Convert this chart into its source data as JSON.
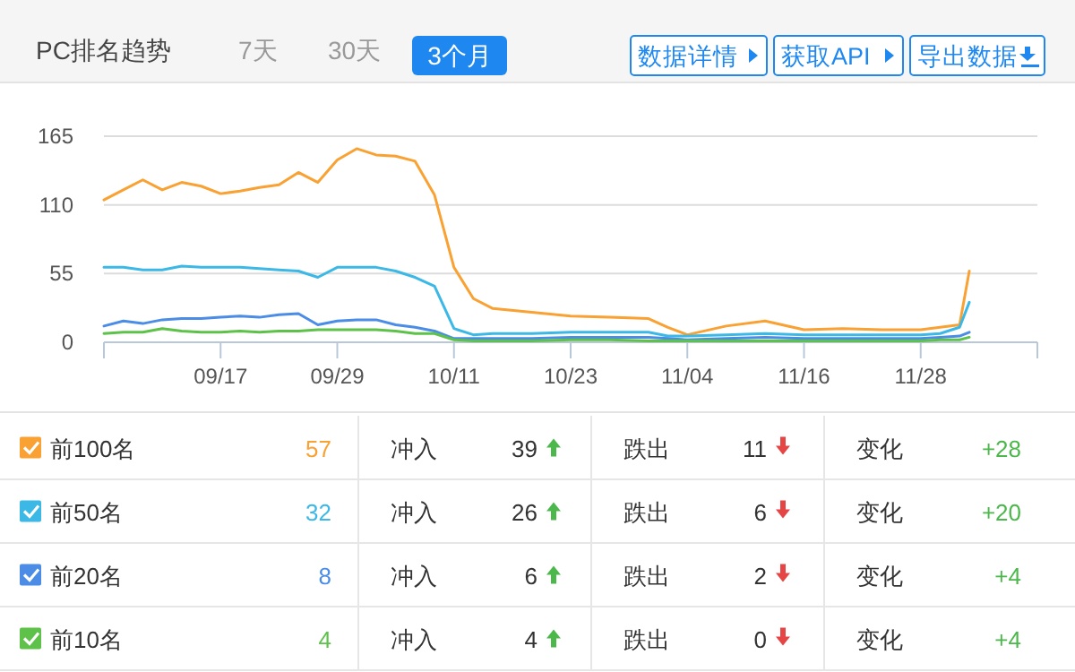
{
  "chart_data": [
    {
      "type": "line",
      "title": "PC排名趋势",
      "annotations": [
        "7天",
        "30天",
        "3个月",
        "数据详情",
        "获取API",
        "导出数据"
      ],
      "x": [
        "--09-05",
        "--09-07",
        "--09-09",
        "--09-11",
        "--09-13",
        "--09-15",
        "--09-17",
        "--09-19",
        "--09-21",
        "--09-23",
        "--09-25",
        "--09-27",
        "--09-29",
        "--10-01",
        "--10-03",
        "--10-05",
        "--10-07",
        "--10-09",
        "--10-11",
        "--10-13",
        "--10-15",
        "--10-19",
        "--10-23",
        "--10-27",
        "--10-31",
        "--11-02",
        "--11-04",
        "--11-08",
        "--11-12",
        "--11-16",
        "--11-20",
        "--11-24",
        "--11-28",
        "--11-30",
        "--12-02",
        "--12-03"
      ],
      "series": [
        {
          "color": "#f9a132",
          "values": [
            114,
            122,
            130,
            122,
            128,
            125,
            119,
            121,
            124,
            126,
            136,
            128,
            146,
            155,
            150,
            149,
            145,
            118,
            60,
            35,
            27,
            24,
            21,
            20,
            19,
            12,
            6,
            13,
            17,
            10,
            11,
            10,
            10,
            12,
            14,
            57
          ]
        },
        {
          "color": "#3cb8e6",
          "values": [
            60,
            60,
            58,
            58,
            61,
            60,
            60,
            60,
            59,
            58,
            57,
            52,
            60,
            60,
            60,
            57,
            52,
            45,
            11,
            6,
            7,
            7,
            8,
            8,
            8,
            5,
            5,
            6,
            7,
            6,
            6,
            6,
            6,
            7,
            12,
            32
          ]
        },
        {
          "color": "#4a8ce6",
          "values": [
            13,
            17,
            15,
            18,
            19,
            19,
            20,
            21,
            20,
            22,
            23,
            14,
            17,
            18,
            18,
            14,
            12,
            9,
            3,
            3,
            3,
            3,
            4,
            4,
            4,
            3,
            2,
            3,
            4,
            3,
            3,
            3,
            3,
            4,
            5,
            8
          ]
        },
        {
          "color": "#5ec24a",
          "values": [
            7,
            8,
            8,
            11,
            9,
            8,
            8,
            9,
            8,
            9,
            9,
            10,
            10,
            10,
            10,
            9,
            7,
            7,
            2,
            1,
            1,
            1,
            2,
            2,
            1,
            1,
            1,
            1,
            1,
            1,
            1,
            1,
            1,
            2,
            2,
            4
          ]
        }
      ],
      "xlim": [
        "--09-05",
        "--12-10"
      ],
      "xticks": [
        {
          "value": "--09-05",
          "label": null
        },
        {
          "value": "--09-17",
          "label": "09/17"
        },
        {
          "value": "--09-29",
          "label": "09/29"
        },
        {
          "value": "--10-11",
          "label": "10/11"
        },
        {
          "value": "--10-23",
          "label": "10/23"
        },
        {
          "value": "--11-04",
          "label": "11/04"
        },
        {
          "value": "--11-16",
          "label": "11/16"
        },
        {
          "value": "--11-28",
          "label": "11/28"
        },
        {
          "value": "--12-10",
          "label": null
        }
      ],
      "ylim": [
        0,
        165
      ],
      "yticks": [
        0,
        55,
        110,
        165
      ],
      "grid": "y",
      "marker": "none",
      "line_style": "solid"
    },
    {
      "type": "other",
      "annotations": [
        "前100名",
        "57",
        "冲入",
        "39",
        "跌出",
        "11",
        "变化",
        "+28",
        "前50名",
        "32",
        "冲入",
        "26",
        "跌出",
        "6",
        "变化",
        "+20",
        "前20名",
        "8",
        "冲入",
        "6",
        "跌出",
        "2",
        "变化",
        "+4",
        "前10名",
        "4",
        "冲入",
        "4",
        "跌出",
        "0",
        "变化",
        "+4"
      ]
    }
  ]
}
